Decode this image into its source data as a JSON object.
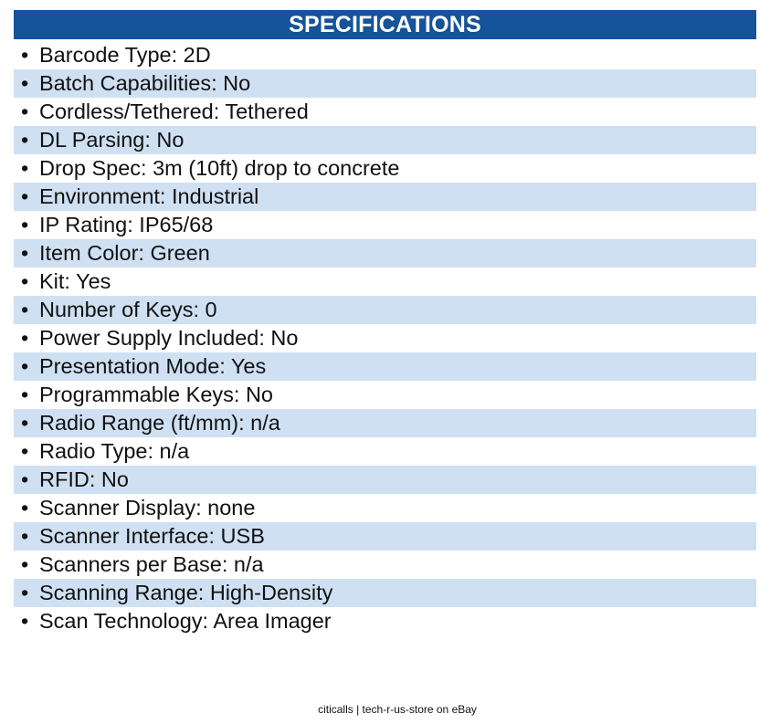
{
  "header": {
    "title": "SPECIFICATIONS"
  },
  "specs": [
    "Barcode Type: 2D",
    "Batch Capabilities: No",
    "Cordless/Tethered: Tethered",
    "DL Parsing: No",
    "Drop Spec: 3m (10ft) drop to concrete",
    "Environment: Industrial",
    "IP Rating: IP65/68",
    "Item Color: Green",
    "Kit: Yes",
    "Number of Keys: 0",
    "Power Supply Included: No",
    "Presentation Mode: Yes",
    "Programmable Keys: No",
    "Radio Range (ft/mm): n/a",
    "Radio Type: n/a",
    "RFID: No",
    "Scanner Display: none",
    "Scanner Interface: USB",
    "Scanners per Base: n/a",
    "Scanning Range: High-Density",
    "Scan Technology: Area Imager"
  ],
  "footer": {
    "text": "citicalls | tech-r-us-store on eBay"
  }
}
